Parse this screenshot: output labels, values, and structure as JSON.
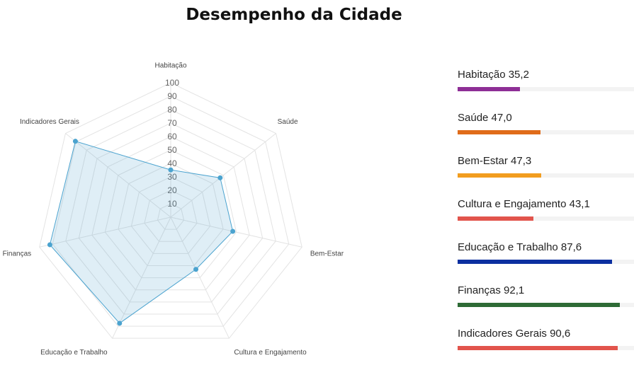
{
  "title": "Desempenho da Cidade",
  "chart_data": {
    "type": "radar",
    "title": "Desempenho da Cidade",
    "categories": [
      "Habitação",
      "Saúde",
      "Bem-Estar",
      "Cultura e Engajamento",
      "Educação e Trabalho",
      "Finanças",
      "Indicadores Gerais"
    ],
    "values": [
      35.2,
      47.0,
      47.3,
      43.1,
      87.6,
      92.1,
      90.6
    ],
    "value_labels": [
      "35,2",
      "47,0",
      "47,3",
      "43,1",
      "87,6",
      "92,1",
      "90,6"
    ],
    "rlim": [
      0,
      100
    ],
    "ticks": [
      "10",
      "20",
      "30",
      "40",
      "50",
      "60",
      "70",
      "80",
      "90",
      "100"
    ],
    "grid": true,
    "legend_position": "right",
    "series_color": "#4ba3cf",
    "legend_colors": [
      "#8e2f96",
      "#e06c1a",
      "#f29d1f",
      "#e2544c",
      "#0b2fa0",
      "#2e6b36",
      "#e2544c"
    ],
    "track_color": "#f3f3f3"
  }
}
